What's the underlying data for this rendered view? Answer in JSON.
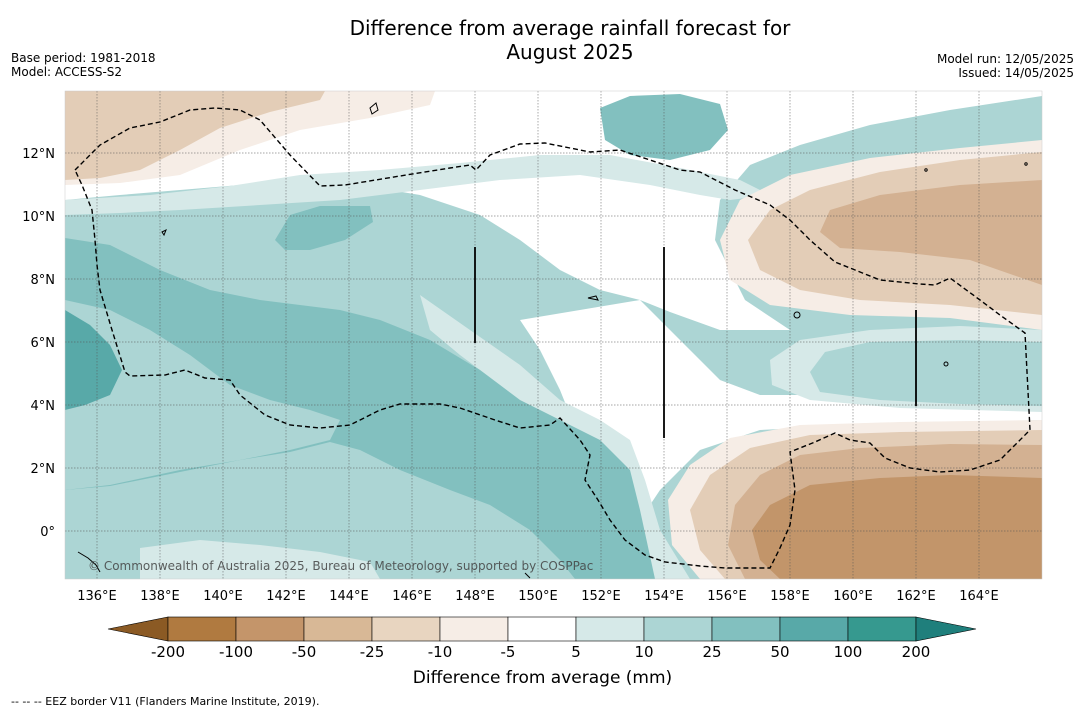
{
  "title_line1": "Difference from average rainfall forecast for",
  "title_line2": "August 2025",
  "base_period": "Base period: 1981-2018",
  "model": "Model: ACCESS-S2",
  "model_run": "Model run: 12/05/2025",
  "issued": "Issued: 14/05/2025",
  "copyright": "© Commonwealth of Australia 2025, Bureau of Meteorology, supported by COSPPac",
  "lon_labels": [
    "136°E",
    "138°E",
    "140°E",
    "142°E",
    "144°E",
    "146°E",
    "148°E",
    "150°E",
    "152°E",
    "154°E",
    "156°E",
    "158°E",
    "160°E",
    "162°E",
    "164°E"
  ],
  "lat_labels": [
    "12°N",
    "10°N",
    "8°N",
    "6°N",
    "4°N",
    "2°N",
    "0°"
  ],
  "colorbar": {
    "title": "Difference from average (mm)",
    "labels": [
      "-200",
      "-100",
      "-50",
      "-25",
      "-10",
      "-5",
      "5",
      "10",
      "25",
      "50",
      "100",
      "200"
    ],
    "colors": [
      "#8b5a24",
      "#b07a40",
      "#c4956a",
      "#d8b896",
      "#e8d5c0",
      "#f6ede6",
      "#ffffff",
      "#d6e9e8",
      "#acd5d4",
      "#82c0bf",
      "#58a9a8",
      "#36998f",
      "#1f7f7c"
    ]
  },
  "eez_note": "--  --  -- EEZ border V11 (Flanders Marine Institute, 2019)."
}
